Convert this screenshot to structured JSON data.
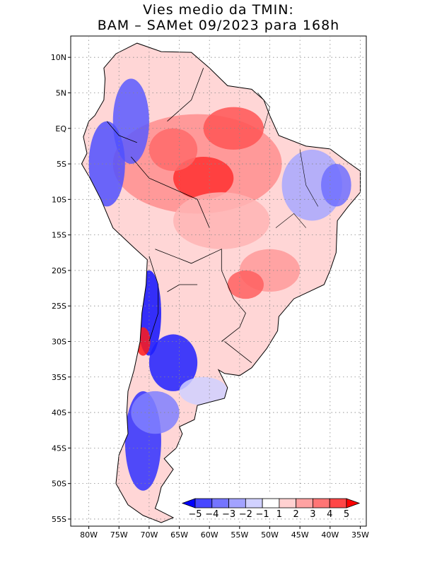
{
  "title": {
    "line1": "Vies medio da TMIN:",
    "line2": "BAM – SAMet 09/2023  para 168h"
  },
  "map": {
    "lon_range": [
      -83,
      -34
    ],
    "lat_range": [
      -56,
      13
    ],
    "lon_ticks": [
      {
        "value": -80,
        "label": "80W"
      },
      {
        "value": -75,
        "label": "75W"
      },
      {
        "value": -70,
        "label": "70W"
      },
      {
        "value": -65,
        "label": "65W"
      },
      {
        "value": -60,
        "label": "60W"
      },
      {
        "value": -55,
        "label": "55W"
      },
      {
        "value": -50,
        "label": "50W"
      },
      {
        "value": -45,
        "label": "45W"
      },
      {
        "value": -40,
        "label": "40W"
      },
      {
        "value": -35,
        "label": "35W"
      }
    ],
    "lat_ticks": [
      {
        "value": 10,
        "label": "10N"
      },
      {
        "value": 5,
        "label": "5N"
      },
      {
        "value": 0,
        "label": "EQ"
      },
      {
        "value": -5,
        "label": "5S"
      },
      {
        "value": -10,
        "label": "10S"
      },
      {
        "value": -15,
        "label": "15S"
      },
      {
        "value": -20,
        "label": "20S"
      },
      {
        "value": -25,
        "label": "25S"
      },
      {
        "value": -30,
        "label": "30S"
      },
      {
        "value": -35,
        "label": "35S"
      },
      {
        "value": -40,
        "label": "40S"
      },
      {
        "value": -45,
        "label": "45S"
      },
      {
        "value": -50,
        "label": "50S"
      },
      {
        "value": -55,
        "label": "55S"
      }
    ],
    "gridlines": "dotted",
    "continent_outline": [
      [
        -77.5,
        8.5
      ],
      [
        -75.5,
        10.5
      ],
      [
        -72,
        12
      ],
      [
        -68,
        10.8
      ],
      [
        -63,
        10.7
      ],
      [
        -60,
        8.5
      ],
      [
        -57,
        6
      ],
      [
        -53,
        5.5
      ],
      [
        -51,
        4
      ],
      [
        -50,
        1.8
      ],
      [
        -48.5,
        -1
      ],
      [
        -44,
        -2.5
      ],
      [
        -40,
        -2.9
      ],
      [
        -37,
        -4.8
      ],
      [
        -35,
        -6
      ],
      [
        -35,
        -9
      ],
      [
        -37,
        -11
      ],
      [
        -38.8,
        -13
      ],
      [
        -39,
        -17.5
      ],
      [
        -40,
        -20
      ],
      [
        -41,
        -22
      ],
      [
        -43.5,
        -23
      ],
      [
        -46,
        -24
      ],
      [
        -48.5,
        -26.5
      ],
      [
        -48.7,
        -28.5
      ],
      [
        -50.5,
        -31
      ],
      [
        -53,
        -33.7
      ],
      [
        -55,
        -34.8
      ],
      [
        -57.5,
        -34.5
      ],
      [
        -58.5,
        -34
      ],
      [
        -57,
        -36.5
      ],
      [
        -57.5,
        -38
      ],
      [
        -62,
        -39
      ],
      [
        -62.5,
        -41
      ],
      [
        -65,
        -42
      ],
      [
        -64.5,
        -43
      ],
      [
        -65.5,
        -45
      ],
      [
        -67.5,
        -46.5
      ],
      [
        -66,
        -48
      ],
      [
        -68,
        -50.5
      ],
      [
        -68.5,
        -52.3
      ],
      [
        -69,
        -53.5
      ],
      [
        -66,
        -54.8
      ],
      [
        -68,
        -55.5
      ],
      [
        -71,
        -54.5
      ],
      [
        -73.5,
        -53
      ],
      [
        -75.5,
        -50
      ],
      [
        -75,
        -46
      ],
      [
        -73.5,
        -43
      ],
      [
        -73.7,
        -40
      ],
      [
        -73.5,
        -37
      ],
      [
        -72.5,
        -34
      ],
      [
        -71.5,
        -30
      ],
      [
        -71.2,
        -26
      ],
      [
        -70.5,
        -22
      ],
      [
        -70.3,
        -18.5
      ],
      [
        -72.5,
        -16.8
      ],
      [
        -76,
        -14
      ],
      [
        -78,
        -10
      ],
      [
        -79.8,
        -7
      ],
      [
        -81.2,
        -5
      ],
      [
        -80.3,
        -3.5
      ],
      [
        -80.9,
        -1.2
      ],
      [
        -80,
        1
      ],
      [
        -79,
        1.8
      ],
      [
        -77.5,
        4
      ],
      [
        -77.3,
        7
      ],
      [
        -77.5,
        8.5
      ]
    ],
    "bias_patches": [
      {
        "lon": -62,
        "lat": -5,
        "rx": 14,
        "ry": 7,
        "color": "#ff8e8e"
      },
      {
        "lon": -61,
        "lat": -7,
        "rx": 5,
        "ry": 3,
        "color": "#ff3030"
      },
      {
        "lon": -56,
        "lat": 0,
        "rx": 5,
        "ry": 3,
        "color": "#ff5555"
      },
      {
        "lon": -66,
        "lat": -3,
        "rx": 4,
        "ry": 3,
        "color": "#ff6a6a"
      },
      {
        "lon": -58,
        "lat": -13,
        "rx": 8,
        "ry": 4,
        "color": "#ffb4b4"
      },
      {
        "lon": -50,
        "lat": -20,
        "rx": 5,
        "ry": 3,
        "color": "#ff9a9a"
      },
      {
        "lon": -54,
        "lat": -22,
        "rx": 3,
        "ry": 2,
        "color": "#ff6060"
      },
      {
        "lon": -43,
        "lat": -8,
        "rx": 5,
        "ry": 5,
        "color": "#a8a8ff"
      },
      {
        "lon": -39,
        "lat": -8,
        "rx": 2.5,
        "ry": 3,
        "color": "#7070ff"
      },
      {
        "lon": -73,
        "lat": 1,
        "rx": 3,
        "ry": 6,
        "color": "#5a5aff"
      },
      {
        "lon": -77,
        "lat": -5,
        "rx": 3,
        "ry": 6,
        "color": "#5050ff"
      },
      {
        "lon": -70,
        "lat": -26,
        "rx": 2,
        "ry": 6,
        "color": "#1010ff"
      },
      {
        "lon": -66,
        "lat": -33,
        "rx": 4,
        "ry": 4,
        "color": "#2020ff"
      },
      {
        "lon": -71,
        "lat": -44,
        "rx": 3,
        "ry": 7,
        "color": "#3030ff"
      },
      {
        "lon": -69,
        "lat": -40,
        "rx": 4,
        "ry": 3,
        "color": "#8080ff"
      },
      {
        "lon": -71,
        "lat": -30,
        "rx": 1.2,
        "ry": 2,
        "color": "#ff1a1a"
      },
      {
        "lon": -61,
        "lat": -37,
        "rx": 4,
        "ry": 2,
        "color": "#d0d0ff"
      }
    ],
    "borders": [
      [
        [
          -67,
          1
        ],
        [
          -63,
          4
        ],
        [
          -61,
          8.5
        ]
      ],
      [
        [
          -73,
          -4
        ],
        [
          -70,
          -7
        ],
        [
          -62,
          -10
        ],
        [
          -60,
          -14
        ]
      ],
      [
        [
          -69,
          -17
        ],
        [
          -63,
          -19
        ],
        [
          -58,
          -17
        ],
        [
          -58,
          -20
        ]
      ],
      [
        [
          -58,
          -20
        ],
        [
          -56,
          -24
        ],
        [
          -54,
          -26
        ],
        [
          -55,
          -28
        ],
        [
          -58,
          -30
        ]
      ],
      [
        [
          -62,
          -22
        ],
        [
          -65,
          -22
        ],
        [
          -67,
          -23
        ]
      ],
      [
        [
          -70,
          -18
        ],
        [
          -68.5,
          -22
        ],
        [
          -68.5,
          -26
        ],
        [
          -70,
          -30
        ]
      ],
      [
        [
          -72,
          -2
        ],
        [
          -75,
          -1
        ],
        [
          -77,
          1
        ]
      ],
      [
        [
          -53,
          -33
        ],
        [
          -56,
          -31
        ],
        [
          -57.5,
          -30
        ]
      ]
    ],
    "rivers": [
      [
        [
          -52,
          5
        ],
        [
          -50,
          3
        ],
        [
          -51,
          0
        ]
      ],
      [
        [
          -45,
          -3
        ],
        [
          -44,
          -8
        ],
        [
          -42,
          -11
        ]
      ],
      [
        [
          -49,
          -14
        ],
        [
          -46,
          -12
        ],
        [
          -44,
          -14
        ]
      ]
    ]
  },
  "legend": {
    "levels": [
      "-5",
      "-4",
      "-3",
      "-2",
      "-1",
      "1",
      "2",
      "3",
      "4",
      "5"
    ],
    "colors": [
      "#0000ff",
      "#4646ff",
      "#7575ff",
      "#a2a2ff",
      "#d1d1ff",
      "#ffffff",
      "#ffd1d1",
      "#ffa2a2",
      "#ff7575",
      "#ff4646",
      "#ff0000"
    ]
  }
}
